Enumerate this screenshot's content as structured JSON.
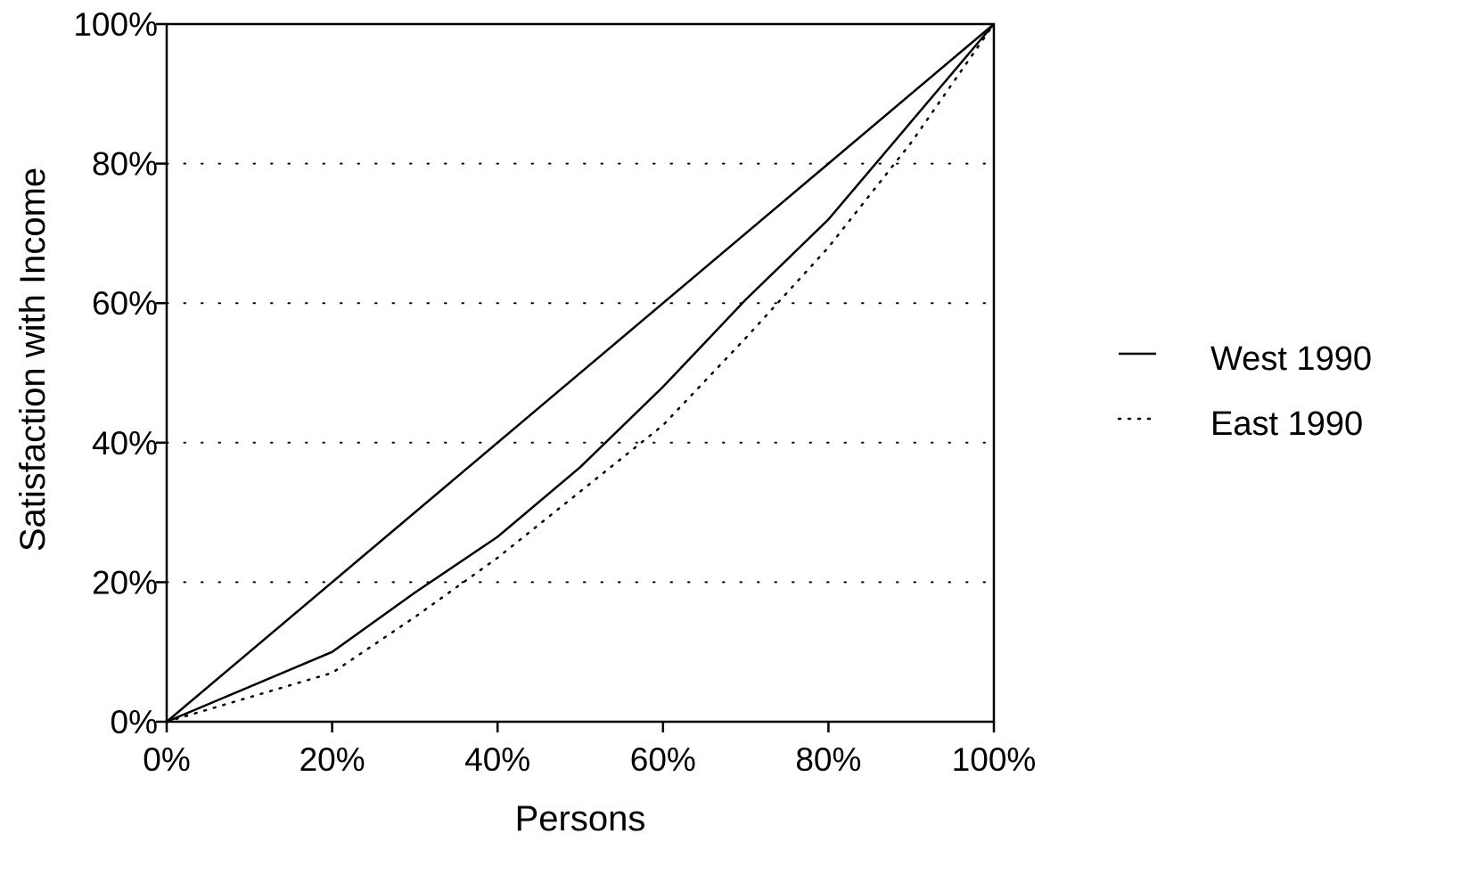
{
  "chart_data": {
    "type": "line",
    "xlabel": "Persons",
    "ylabel": "Satisfaction with Income",
    "xlim": [
      0,
      100
    ],
    "ylim": [
      0,
      100
    ],
    "x_ticks": [
      "0%",
      "20%",
      "40%",
      "60%",
      "80%",
      "100%"
    ],
    "y_ticks": [
      "0%",
      "20%",
      "40%",
      "60%",
      "80%",
      "100%"
    ],
    "x_tick_values": [
      0,
      20,
      40,
      60,
      80,
      100
    ],
    "y_tick_values": [
      0,
      20,
      40,
      60,
      80,
      100
    ],
    "grid": "horizontal-dotted",
    "legend_position": "right",
    "equality_line": {
      "x": [
        0,
        100
      ],
      "y": [
        0,
        100
      ]
    },
    "series": [
      {
        "name": "West 1990",
        "line_style": "solid",
        "x": [
          0,
          10,
          20,
          30,
          40,
          50,
          60,
          70,
          80,
          90,
          100
        ],
        "y": [
          0,
          5,
          10,
          18.5,
          26.5,
          36.5,
          48,
          60.5,
          72,
          86,
          100
        ]
      },
      {
        "name": "East 1990",
        "line_style": "dotted",
        "x": [
          0,
          10,
          20,
          30,
          40,
          50,
          60,
          70,
          80,
          90,
          100
        ],
        "y": [
          0,
          3.5,
          7,
          15,
          23.5,
          33,
          42.5,
          55,
          68,
          83,
          100
        ]
      }
    ],
    "colors": {
      "axis": "#000000",
      "line": "#000000",
      "grid": "#000000",
      "background": "#ffffff"
    }
  }
}
